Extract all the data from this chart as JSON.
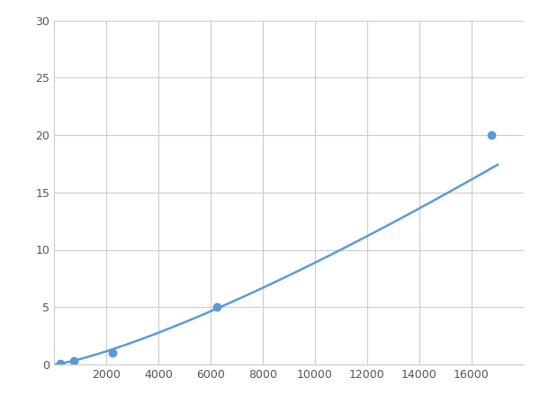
{
  "x_data": [
    250,
    750,
    2250,
    6250,
    16750
  ],
  "y_data": [
    0.1,
    0.3,
    1.0,
    5.0,
    20.0
  ],
  "line_color": "#5b9bd5",
  "marker_color": "#5b9bd5",
  "marker_size": 6,
  "line_width": 1.8,
  "xlim": [
    0,
    18000
  ],
  "ylim": [
    0,
    30
  ],
  "xticks": [
    2000,
    4000,
    6000,
    8000,
    10000,
    12000,
    14000,
    16000
  ],
  "yticks": [
    0,
    5,
    10,
    15,
    20,
    25,
    30
  ],
  "grid_color": "#cccccc",
  "background_color": "#ffffff",
  "figure_background": "#ffffff",
  "tick_labelsize": 9
}
